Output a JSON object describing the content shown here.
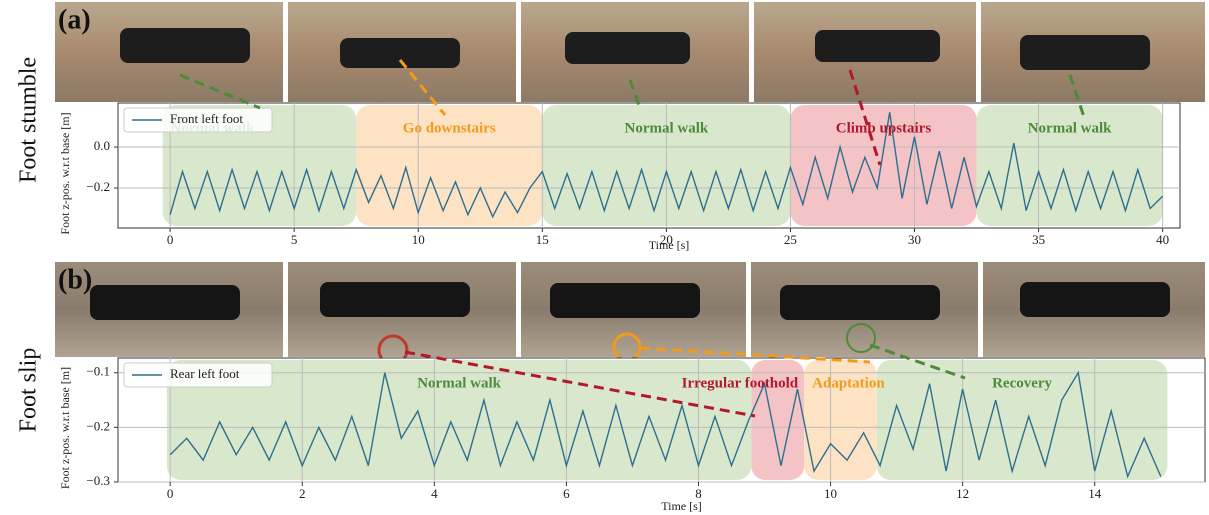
{
  "chart_data": [
    {
      "type": "line",
      "panel_label": "(a)",
      "row_label": "Foot stumble",
      "xlabel": "Time [s]",
      "ylabel": "Foot z-pos. w.r.t base [m]",
      "xlim": [
        -2.1,
        40.7
      ],
      "ylim": [
        -0.395,
        0.215
      ],
      "xticks": [
        0,
        5,
        10,
        15,
        20,
        25,
        30,
        35,
        40
      ],
      "yticks": [
        {
          "value": 0,
          "label": "0.0"
        },
        {
          "value": -0.2,
          "label": "−0.2"
        }
      ],
      "grid": true,
      "legend": "upper left",
      "x": [
        0,
        0.5,
        1,
        1.5,
        2,
        2.5,
        3,
        3.5,
        4,
        4.5,
        5,
        5.5,
        6,
        6.5,
        7,
        7.5,
        8,
        8.5,
        9,
        9.5,
        10,
        10.5,
        11,
        11.5,
        12,
        12.5,
        13,
        13.5,
        14,
        14.5,
        15,
        15.5,
        16,
        16.5,
        17,
        17.5,
        18,
        18.5,
        19,
        19.5,
        20,
        20.5,
        21,
        21.5,
        22,
        22.5,
        23,
        23.5,
        24,
        24.5,
        25,
        25.5,
        26,
        26.5,
        27,
        27.5,
        28,
        28.5,
        29,
        29.5,
        30,
        30.5,
        31,
        31.5,
        32,
        32.5,
        33,
        33.5,
        34,
        34.5,
        35,
        35.5,
        36,
        36.5,
        37,
        37.5,
        38,
        38.5,
        39,
        39.5,
        40
      ],
      "series": [
        {
          "name": "Front left foot",
          "color": "#2e6e8e",
          "values": [
            -0.33,
            -0.12,
            -0.3,
            -0.12,
            -0.31,
            -0.11,
            -0.3,
            -0.12,
            -0.31,
            -0.12,
            -0.3,
            -0.11,
            -0.31,
            -0.12,
            -0.3,
            -0.11,
            -0.27,
            -0.14,
            -0.3,
            -0.1,
            -0.32,
            -0.15,
            -0.31,
            -0.17,
            -0.33,
            -0.2,
            -0.34,
            -0.22,
            -0.32,
            -0.2,
            -0.12,
            -0.3,
            -0.13,
            -0.3,
            -0.12,
            -0.31,
            -0.12,
            -0.3,
            -0.11,
            -0.31,
            -0.12,
            -0.3,
            -0.12,
            -0.31,
            -0.12,
            -0.3,
            -0.11,
            -0.31,
            -0.12,
            -0.3,
            -0.1,
            -0.28,
            -0.05,
            -0.25,
            0.0,
            -0.22,
            -0.05,
            -0.2,
            0.17,
            -0.25,
            0.05,
            -0.28,
            -0.02,
            -0.3,
            -0.05,
            -0.29,
            -0.12,
            -0.3,
            0.02,
            -0.31,
            -0.12,
            -0.3,
            -0.11,
            -0.31,
            -0.12,
            -0.3,
            -0.12,
            -0.31,
            -0.11,
            -0.3,
            -0.24
          ]
        }
      ],
      "regions": [
        {
          "label": "Normal walk",
          "x_range": [
            -0.3,
            7.5
          ],
          "color": "#d9e8cc",
          "text_color": "#4f8a3a",
          "label_anchor": "start"
        },
        {
          "label": "Go downstairs",
          "x_range": [
            7.5,
            15
          ],
          "color": "#fde3c4",
          "text_color": "#f39a1c",
          "label_anchor": "middle"
        },
        {
          "label": "Normal walk",
          "x_range": [
            15,
            25
          ],
          "color": "#d9e8cc",
          "text_color": "#4f8a3a",
          "label_anchor": "middle"
        },
        {
          "label": "Climb upstairs",
          "x_range": [
            25,
            32.5
          ],
          "color": "#f4c3c6",
          "text_color": "#b2182b",
          "label_anchor": "middle"
        },
        {
          "label": "Normal walk",
          "x_range": [
            32.5,
            40
          ],
          "color": "#d9e8cc",
          "text_color": "#4f8a3a",
          "label_anchor": "middle"
        }
      ]
    },
    {
      "type": "line",
      "panel_label": "(b)",
      "row_label": "Foot slip",
      "xlabel": "Time [s]",
      "ylabel": "Foot z-pos. w.r.t base [m]",
      "xlim": [
        -0.79,
        15.67
      ],
      "ylim": [
        -0.3,
        -0.073
      ],
      "xticks": [
        0,
        2,
        4,
        6,
        8,
        10,
        12,
        14
      ],
      "yticks": [
        {
          "value": -0.1,
          "label": "−0.1"
        },
        {
          "value": -0.2,
          "label": "−0.2"
        },
        {
          "value": -0.3,
          "label": "−0.3"
        }
      ],
      "grid": true,
      "legend": "upper left",
      "x": [
        0,
        0.25,
        0.5,
        0.75,
        1,
        1.25,
        1.5,
        1.75,
        2,
        2.25,
        2.5,
        2.75,
        3,
        3.25,
        3.5,
        3.75,
        4,
        4.25,
        4.5,
        4.75,
        5,
        5.25,
        5.5,
        5.75,
        6,
        6.25,
        6.5,
        6.75,
        7,
        7.25,
        7.5,
        7.75,
        8,
        8.25,
        8.5,
        8.75,
        9,
        9.25,
        9.5,
        9.75,
        10,
        10.25,
        10.5,
        10.75,
        11,
        11.25,
        11.5,
        11.75,
        12,
        12.25,
        12.5,
        12.75,
        13,
        13.25,
        13.5,
        13.75,
        14,
        14.25,
        14.5,
        14.75,
        15
      ],
      "series": [
        {
          "name": "Rear left foot",
          "color": "#2e6e8e",
          "values": [
            -0.25,
            -0.22,
            -0.26,
            -0.19,
            -0.25,
            -0.2,
            -0.26,
            -0.19,
            -0.27,
            -0.2,
            -0.26,
            -0.18,
            -0.27,
            -0.1,
            -0.22,
            -0.17,
            -0.27,
            -0.19,
            -0.26,
            -0.15,
            -0.27,
            -0.19,
            -0.26,
            -0.15,
            -0.27,
            -0.17,
            -0.27,
            -0.16,
            -0.27,
            -0.18,
            -0.26,
            -0.16,
            -0.27,
            -0.18,
            -0.27,
            -0.19,
            -0.12,
            -0.27,
            -0.13,
            -0.28,
            -0.23,
            -0.26,
            -0.21,
            -0.27,
            -0.16,
            -0.24,
            -0.12,
            -0.28,
            -0.13,
            -0.26,
            -0.15,
            -0.28,
            -0.18,
            -0.27,
            -0.15,
            -0.1,
            -0.28,
            -0.17,
            -0.29,
            -0.22,
            -0.29
          ]
        }
      ],
      "regions": [
        {
          "label": "Normal walk",
          "x_range": [
            -0.05,
            8.8
          ],
          "color": "#d9e8cc",
          "text_color": "#4f8a3a",
          "label_anchor": "middle"
        },
        {
          "label": "Irregular foothold",
          "x_range": [
            8.8,
            9.6
          ],
          "color": "#f4c3c6",
          "text_color": "#b2182b",
          "label_anchor": "end"
        },
        {
          "label": "Adaptation",
          "x_range": [
            9.6,
            10.7
          ],
          "color": "#fde3c4",
          "text_color": "#f39a1c",
          "label_anchor": "start"
        },
        {
          "label": "Recovery",
          "x_range": [
            10.7,
            15.1
          ],
          "color": "#d9e8cc",
          "text_color": "#4f8a3a",
          "label_anchor": "middle"
        }
      ]
    }
  ]
}
